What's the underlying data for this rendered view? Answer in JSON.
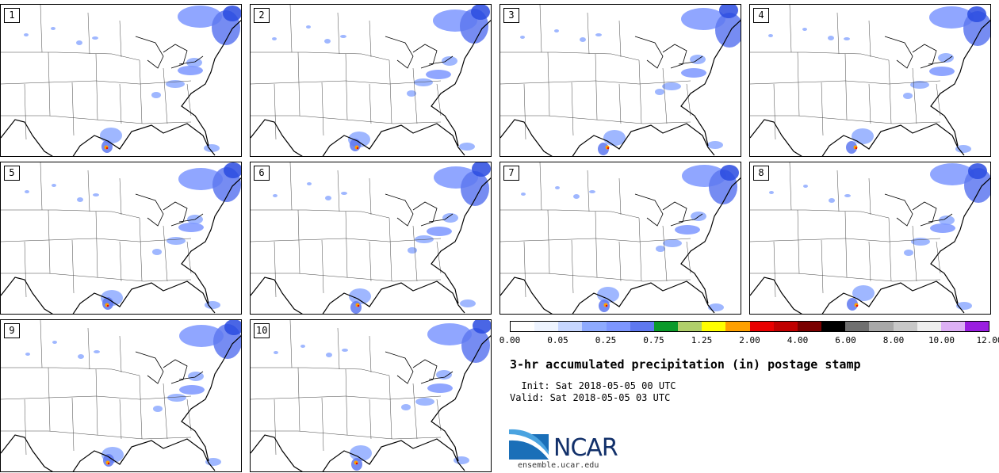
{
  "panels": [
    {
      "label": "1"
    },
    {
      "label": "2"
    },
    {
      "label": "3"
    },
    {
      "label": "4"
    },
    {
      "label": "5"
    },
    {
      "label": "6"
    },
    {
      "label": "7"
    },
    {
      "label": "8"
    },
    {
      "label": "9"
    },
    {
      "label": "10"
    }
  ],
  "legend": {
    "colors": [
      "#ffffff",
      "#eef4ff",
      "#c6d6ff",
      "#8eaaff",
      "#7d96ff",
      "#5e78f0",
      "#0a9a2a",
      "#b0cf6a",
      "#ffff00",
      "#ffa000",
      "#ea0000",
      "#c00000",
      "#7a0000",
      "#000000",
      "#707070",
      "#a8a8a8",
      "#c8c8c8",
      "#eeeeee",
      "#ddb0f5",
      "#9a1ee0"
    ],
    "ticks": [
      "0.00",
      "0.05",
      "0.25",
      "0.75",
      "1.25",
      "2.00",
      "4.00",
      "6.00",
      "8.00",
      "10.00",
      "12.00"
    ]
  },
  "title": "3-hr accumulated precipitation (in) postage stamp",
  "init_line": "  Init: Sat 2018-05-05 00 UTC",
  "valid_line": "Valid: Sat 2018-05-05 03 UTC",
  "logo": {
    "text": "NCAR",
    "url": "ensemble.ucar.edu"
  }
}
